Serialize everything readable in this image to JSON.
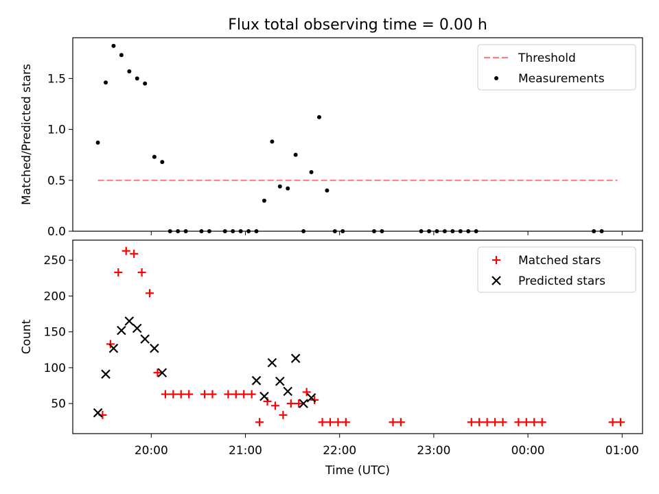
{
  "title": "Flux total observing time = 0.00 h",
  "chart_data": [
    {
      "type": "scatter",
      "ylabel": "Matched/Predicted stars",
      "xlim": [
        "19:10",
        "25:13"
      ],
      "ylim": [
        0,
        1.9
      ],
      "yticks": [
        0.0,
        0.5,
        1.0,
        1.5
      ],
      "ytick_labels": [
        "0.0",
        "0.5",
        "1.0",
        "1.5"
      ],
      "legend_position": "upper right",
      "series": [
        {
          "name": "Threshold",
          "kind": "line",
          "style": "dashed",
          "color": "#ff7f7f",
          "x": [
            "19:26",
            "24:57"
          ],
          "y": [
            0.5,
            0.5
          ]
        },
        {
          "name": "Measurements",
          "kind": "scatter",
          "marker": "dot",
          "color": "#000000",
          "x": [
            "19:26",
            "19:31",
            "19:36",
            "19:41",
            "19:46",
            "19:51",
            "19:56",
            "20:02",
            "20:07",
            "20:12",
            "20:17",
            "20:22",
            "20:32",
            "20:37",
            "20:47",
            "20:52",
            "20:57",
            "21:02",
            "21:07",
            "21:12",
            "21:17",
            "21:22",
            "21:27",
            "21:32",
            "21:37",
            "21:42",
            "21:47",
            "21:52",
            "21:57",
            "22:02",
            "22:22",
            "22:27",
            "22:52",
            "22:57",
            "23:02",
            "23:07",
            "23:12",
            "23:17",
            "23:22",
            "23:27",
            "24:42",
            "24:47"
          ],
          "y": [
            0.87,
            1.46,
            1.82,
            1.73,
            1.57,
            1.5,
            1.45,
            0.73,
            0.68,
            0,
            0,
            0,
            0,
            0,
            0,
            0,
            0,
            0,
            0,
            0.3,
            0.88,
            0.44,
            0.42,
            0.75,
            0,
            0.58,
            1.12,
            0.4,
            0,
            0,
            0,
            0,
            0,
            0,
            0,
            0,
            0,
            0,
            0,
            0,
            0,
            0
          ]
        }
      ]
    },
    {
      "type": "scatter",
      "ylabel": "Count",
      "xlabel": "Time (UTC)",
      "xlim": [
        "19:10",
        "25:13"
      ],
      "ylim": [
        8,
        278
      ],
      "yticks": [
        50,
        100,
        150,
        200,
        250
      ],
      "ytick_labels": [
        "50",
        "100",
        "150",
        "200",
        "250"
      ],
      "xticks": [
        "20:00",
        "21:00",
        "22:00",
        "23:00",
        "24:00",
        "25:00"
      ],
      "xtick_labels": [
        "20:00",
        "21:00",
        "22:00",
        "23:00",
        "00:00",
        "01:00"
      ],
      "legend_position": "upper right",
      "series": [
        {
          "name": "Matched stars",
          "marker": "plus",
          "color": "#ff0000",
          "x": [
            "19:29",
            "19:34",
            "19:39",
            "19:44",
            "19:49",
            "19:54",
            "19:59",
            "20:04",
            "20:09",
            "20:14",
            "20:19",
            "20:24",
            "20:34",
            "20:39",
            "20:49",
            "20:54",
            "20:59",
            "21:04",
            "21:09",
            "21:14",
            "21:19",
            "21:24",
            "21:29",
            "21:34",
            "21:39",
            "21:44",
            "21:49",
            "21:54",
            "21:59",
            "22:04",
            "22:34",
            "22:39",
            "23:24",
            "23:29",
            "23:34",
            "23:39",
            "23:44",
            "23:54",
            "23:59",
            "24:04",
            "24:09",
            "24:54",
            "24:59"
          ],
          "y": [
            34,
            133,
            233,
            263,
            259,
            233,
            204,
            93,
            63,
            63,
            63,
            63,
            63,
            63,
            63,
            63,
            63,
            63,
            24,
            53,
            47,
            34,
            50,
            50,
            66,
            55,
            24,
            24,
            24,
            24,
            24,
            24,
            24,
            24,
            24,
            24,
            24,
            24,
            24,
            24,
            24,
            24,
            24
          ]
        },
        {
          "name": "Predicted stars",
          "marker": "x",
          "color": "#000000",
          "x": [
            "19:26",
            "19:31",
            "19:36",
            "19:41",
            "19:46",
            "19:51",
            "19:56",
            "20:02",
            "20:07",
            "21:07",
            "21:12",
            "21:17",
            "21:22",
            "21:27",
            "21:32",
            "21:37",
            "21:42"
          ],
          "y": [
            37,
            91,
            127,
            152,
            165,
            155,
            140,
            127,
            93,
            82,
            60,
            107,
            81,
            67,
            113,
            50,
            58
          ]
        }
      ]
    }
  ]
}
